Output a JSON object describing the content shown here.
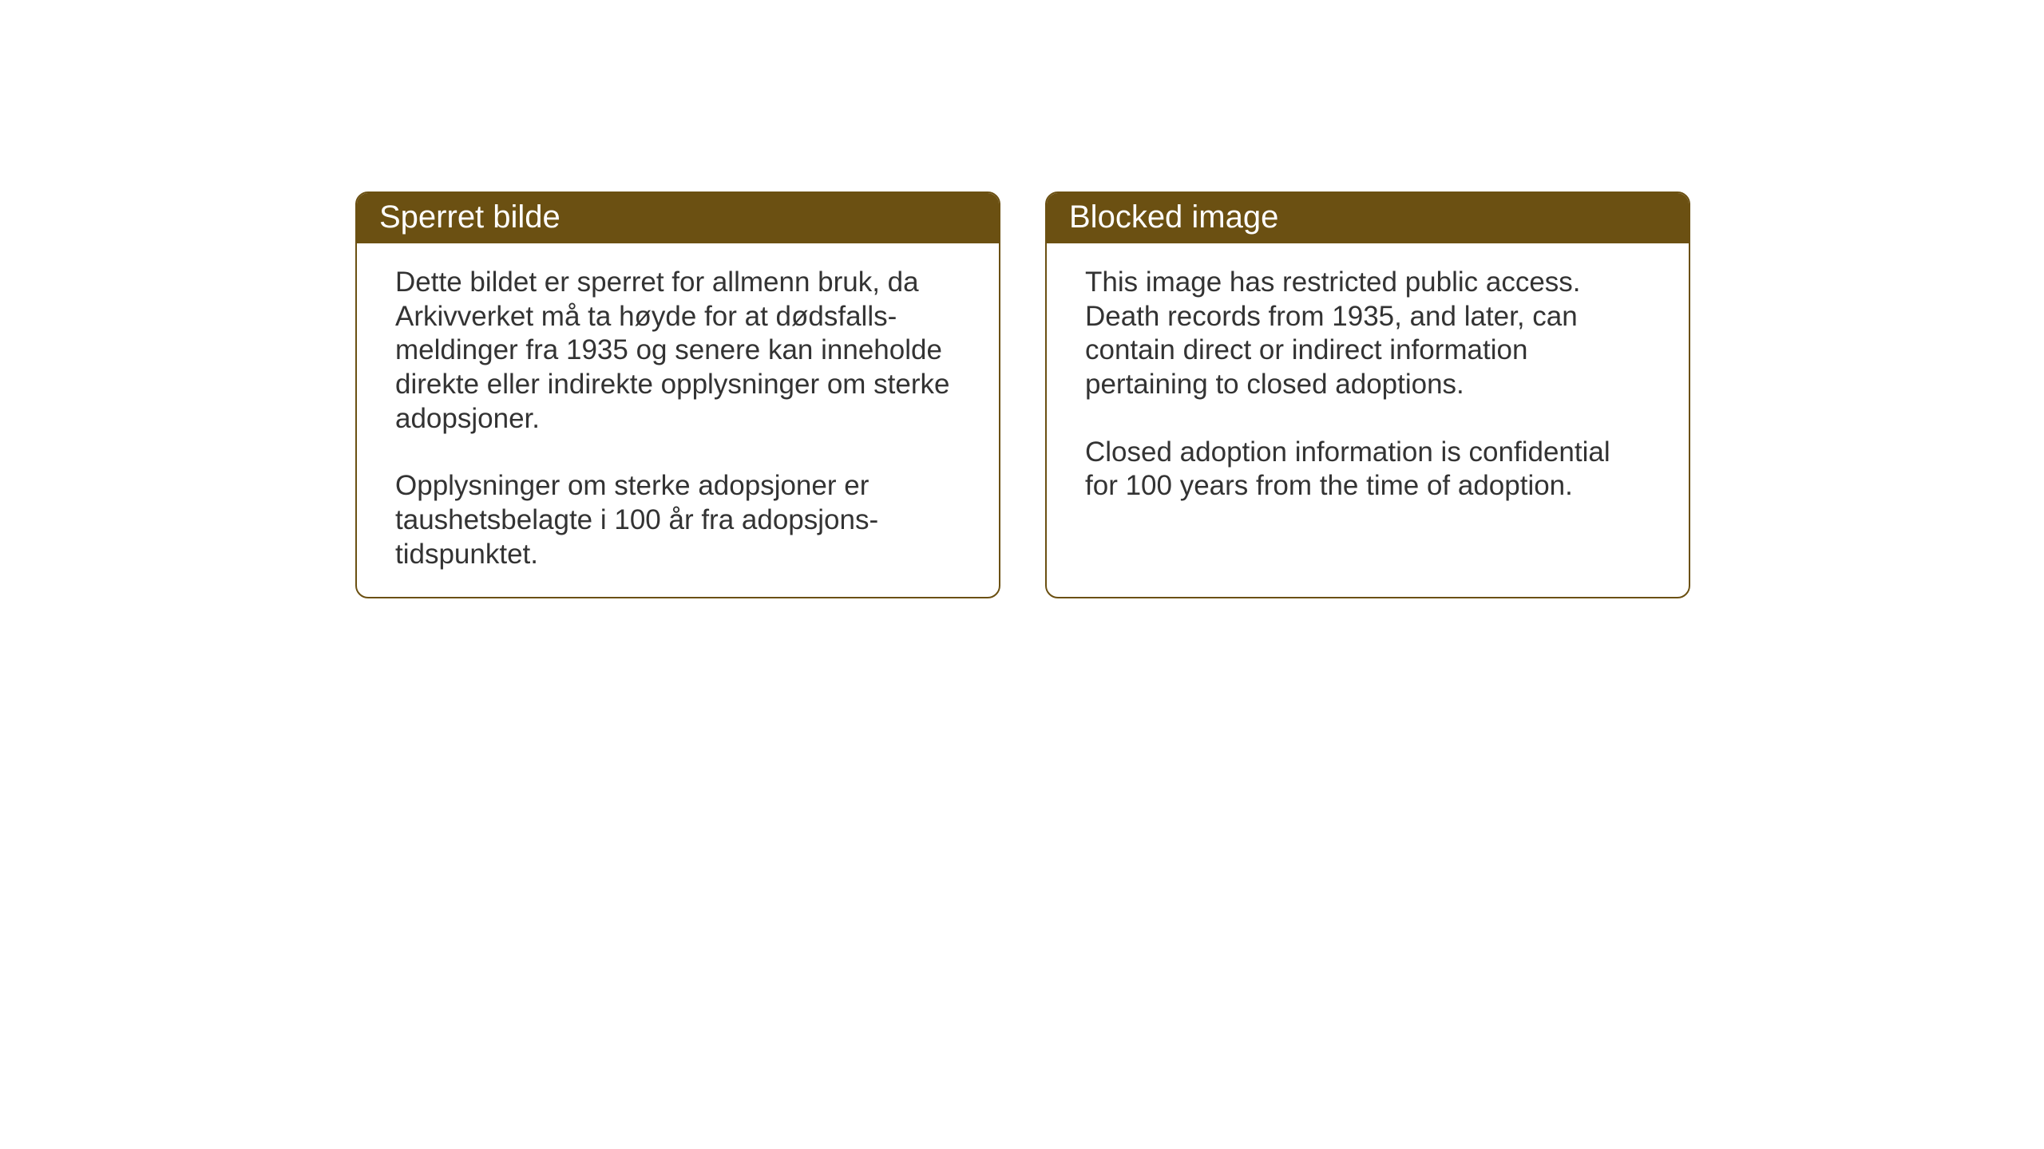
{
  "cards": {
    "left": {
      "title": "Sperret bilde",
      "paragraph1": "Dette bildet er sperret for allmenn bruk, da Arkivverket må ta høyde for at dødsfalls-meldinger fra 1935 og senere kan inneholde direkte eller indirekte opplysninger om sterke adopsjoner.",
      "paragraph2": "Opplysninger om sterke adopsjoner er taushetsbelagte i 100 år fra adopsjons-tidspunktet."
    },
    "right": {
      "title": "Blocked image",
      "paragraph1": "This image has restricted public access. Death records from 1935, and later, can contain direct or indirect information pertaining to closed adoptions.",
      "paragraph2": "Closed adoption information is confidential for 100 years from the time of adoption."
    }
  },
  "styling": {
    "header_background": "#6b5012",
    "header_text_color": "#ffffff",
    "border_color": "#6b5012",
    "body_background": "#ffffff",
    "body_text_color": "#333333",
    "header_fontsize": 40,
    "body_fontsize": 35,
    "border_radius": 16,
    "border_width": 2
  }
}
